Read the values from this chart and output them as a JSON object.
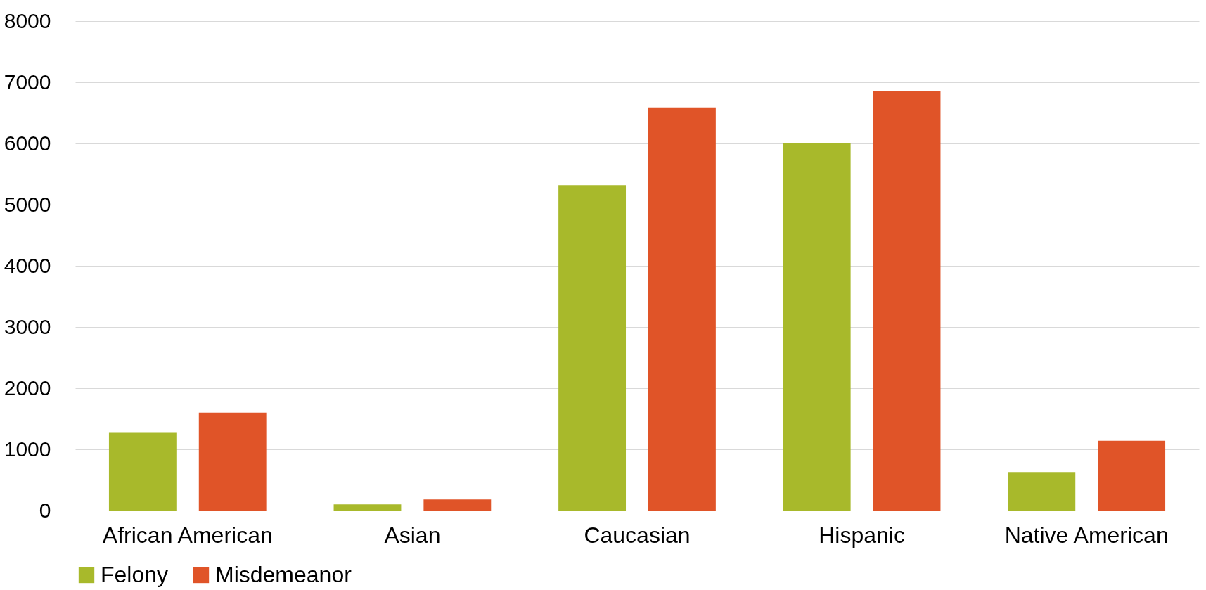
{
  "chart_data": {
    "type": "bar",
    "categories": [
      "African American",
      "Asian",
      "Caucasian",
      "Hispanic",
      "Native American"
    ],
    "series": [
      {
        "name": "Felony",
        "color": "#a8b92b",
        "values": [
          1270,
          100,
          5320,
          6000,
          630
        ]
      },
      {
        "name": "Misdemeanor",
        "color": "#e05428",
        "values": [
          1600,
          180,
          6590,
          6850,
          1140
        ]
      }
    ],
    "ylim": [
      0,
      8000
    ],
    "yticks": [
      0,
      1000,
      2000,
      3000,
      4000,
      5000,
      6000,
      7000,
      8000
    ],
    "grid": "y",
    "legend": "bottom"
  }
}
